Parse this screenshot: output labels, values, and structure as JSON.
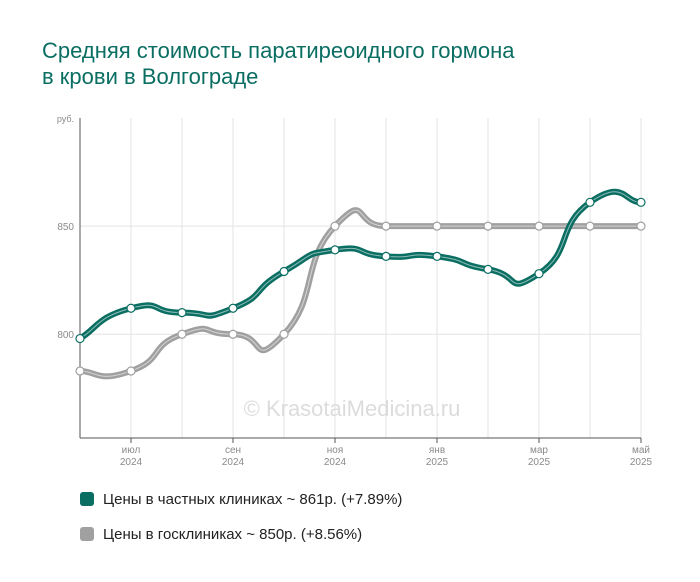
{
  "title": {
    "line1": "Средняя стоимость паратиреоидного гормона",
    "line2": "в крови в Волгограде"
  },
  "watermark": "© KrasotaiMedicina.ru",
  "colors": {
    "title": "#0a6e62",
    "private": "#0a6e62",
    "public": "#a0a0a0",
    "grid": "#e3e3e3",
    "axis": "#555555"
  },
  "chart_data": {
    "type": "line",
    "y_unit": "руб.",
    "ylim": [
      752,
      900
    ],
    "y_ticks": [
      {
        "value": 800,
        "label": "800"
      },
      {
        "value": 850,
        "label": "850"
      }
    ],
    "x_ticks": [
      {
        "line1": "июл",
        "line2": "2024"
      },
      {
        "line1": "сен",
        "line2": "2024"
      },
      {
        "line1": "ноя",
        "line2": "2024"
      },
      {
        "line1": "янв",
        "line2": "2025"
      },
      {
        "line1": "мар",
        "line2": "2025"
      },
      {
        "line1": "май",
        "line2": "2025"
      }
    ],
    "x": [
      "2024-06",
      "2024-07",
      "2024-08",
      "2024-09",
      "2024-10",
      "2024-11",
      "2024-12",
      "2025-01",
      "2025-02",
      "2025-03",
      "2025-04",
      "2025-05"
    ],
    "grid": true,
    "legend_position": "bottom",
    "series": [
      {
        "name": "Цены в частных клиниках ~ 861р. (+7.89%)",
        "color": "#0a6e62",
        "values": [
          798,
          812,
          810,
          812,
          829,
          839,
          836,
          836,
          830,
          828,
          861,
          861
        ]
      },
      {
        "name": "Цены в госклиниках ~ 850р. (+8.56%)",
        "color": "#a0a0a0",
        "values": [
          783,
          783,
          800,
          800,
          800,
          850,
          850,
          850,
          850,
          850,
          850,
          850
        ]
      }
    ]
  }
}
